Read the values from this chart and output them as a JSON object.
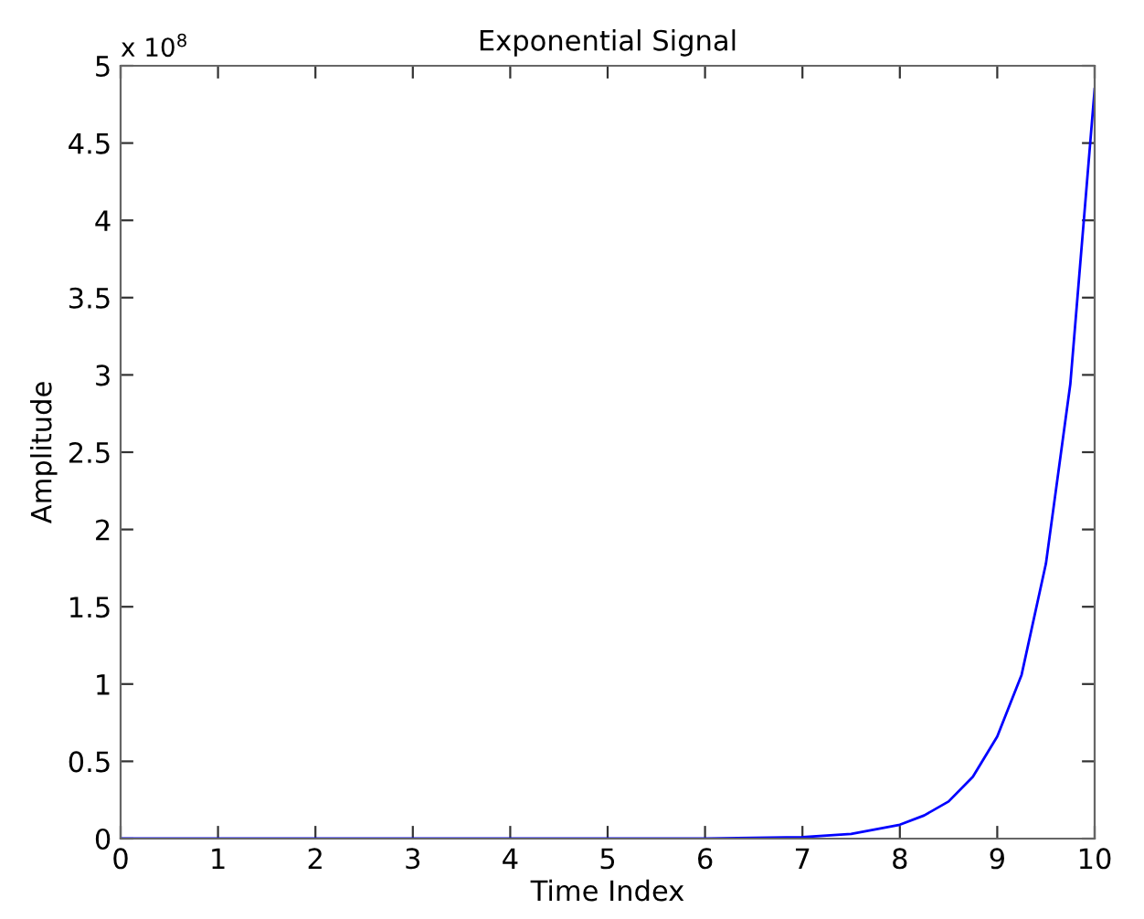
{
  "chart_data": {
    "type": "line",
    "title": "Exponential Signal",
    "xlabel": "Time Index",
    "ylabel": "Amplitude",
    "annotations": [
      "x 10$^{8}$"
    ],
    "x": [
      0,
      1,
      2,
      3,
      4,
      5,
      6,
      7,
      7.5,
      8,
      8.25,
      8.5,
      8.75,
      9,
      9.25,
      9.5,
      9.75,
      10
    ],
    "series": [
      {
        "color": "#0000ff",
        "values": [
          0,
          0,
          0,
          0,
          0,
          0,
          0,
          0.01,
          0.03,
          0.09,
          0.15,
          0.24,
          0.4,
          0.66,
          1.06,
          1.78,
          2.94,
          4.85
        ]
      }
    ],
    "xlim": [
      0,
      10
    ],
    "xticks": [
      0,
      1,
      2,
      3,
      4,
      5,
      6,
      7,
      8,
      9,
      10
    ],
    "ylim": [
      0,
      5
    ],
    "yticks": [
      0,
      0.5,
      1,
      1.5,
      2,
      2.5,
      3,
      3.5,
      4,
      4.5,
      5
    ],
    "grid": false,
    "legend": false,
    "line_style": "solid",
    "marker": "none"
  }
}
